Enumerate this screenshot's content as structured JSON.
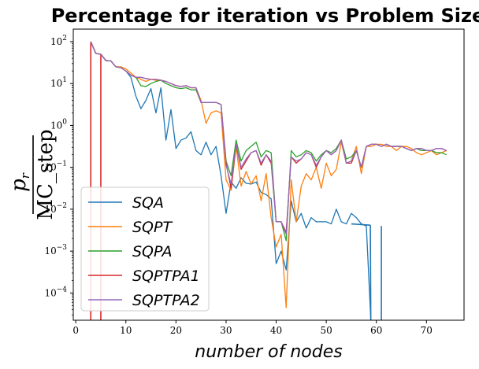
{
  "chart_data": {
    "type": "line",
    "title": "Percentage for iteration vs Problem Size",
    "xlabel": "number of nodes",
    "ylabel_numerator": "p",
    "ylabel_subscript": "r",
    "ylabel_denominator": "MC_step",
    "yscale": "log",
    "xlim": [
      -0.5,
      77.5
    ],
    "ylim_log10": [
      -4.65,
      2.3
    ],
    "xticks": [
      0,
      10,
      20,
      30,
      40,
      50,
      60,
      70
    ],
    "xtick_labels": [
      "0",
      "10",
      "20",
      "30",
      "40",
      "50",
      "60",
      "70"
    ],
    "ytick_exponents": [
      -4,
      -3,
      -2,
      -1,
      0,
      1,
      2
    ],
    "ytick_labels": [
      "10",
      "10",
      "10",
      "10",
      "10",
      "10",
      "10"
    ],
    "ytick_exp_labels": [
      "−4",
      "−3",
      "−2",
      "−1",
      "0",
      "1",
      "2"
    ],
    "grid": false,
    "legend_position": "lower-left",
    "x": [
      3,
      4,
      5,
      6,
      7,
      8,
      9,
      10,
      11,
      12,
      13,
      14,
      15,
      16,
      17,
      18,
      19,
      20,
      21,
      22,
      23,
      24,
      25,
      26,
      27,
      28,
      29,
      30,
      31,
      32,
      33,
      34,
      35,
      36,
      37,
      38,
      39,
      40,
      41,
      42,
      43,
      44,
      45,
      46,
      47,
      48,
      49,
      50,
      51,
      52,
      53,
      54,
      55,
      56,
      57,
      58,
      59,
      60,
      61,
      62,
      63,
      64,
      65,
      66,
      67,
      68,
      69,
      70,
      71,
      72,
      73,
      74
    ],
    "series": [
      {
        "name": "SQA",
        "color": "#1f77b4",
        "log10_values": [
          2.0,
          1.72,
          1.7,
          1.55,
          1.54,
          1.4,
          1.38,
          1.3,
          1.15,
          0.7,
          0.4,
          0.6,
          0.88,
          0.3,
          0.9,
          -0.35,
          0.38,
          -0.55,
          -0.35,
          -0.3,
          -0.15,
          -0.6,
          -0.7,
          -0.4,
          -0.7,
          -0.5,
          -1.2,
          -2.1,
          -1.35,
          -1.5,
          -1.25,
          -1.38,
          -1.4,
          -1.35,
          -1.6,
          -1.65,
          -1.75,
          -3.3,
          -3.0,
          -3.45,
          -1.8,
          -2.3,
          -2.1,
          -2.45,
          -2.2,
          -2.3,
          -2.3,
          -2.3,
          -2.35,
          -2.0,
          -2.3,
          -2.35,
          -2.1,
          -2.2,
          -2.35,
          -2.4,
          -4.9,
          -4.9,
          -4.9,
          -4.9,
          -4.9,
          -4.9,
          -4.9,
          -4.9,
          -4.9,
          -4.9,
          -4.9,
          -4.9,
          -4.9,
          -4.9,
          -4.9,
          -4.9
        ],
        "extra_segments": [
          {
            "x0": 55,
            "y0": -2.35,
            "x1": 58.8,
            "y1": -2.38
          },
          {
            "x0": 58.8,
            "y0": -2.38,
            "x1": 58.9,
            "y1": -4.9
          },
          {
            "x0": 61,
            "y0": -2.4,
            "x1": 61,
            "y1": -4.9
          }
        ]
      },
      {
        "name": "SQPT",
        "color": "#ff7f0e",
        "log10_values": [
          2.0,
          1.72,
          1.7,
          1.55,
          1.54,
          1.4,
          1.4,
          1.35,
          1.25,
          1.15,
          1.1,
          1.05,
          1.1,
          1.08,
          1.08,
          1.05,
          1.0,
          0.95,
          0.93,
          0.95,
          0.9,
          0.9,
          0.6,
          0.05,
          0.3,
          0.35,
          0.3,
          -1.3,
          -1.55,
          -0.5,
          -1.45,
          -1.1,
          -1.4,
          -1.2,
          -1.8,
          -1.15,
          -2.2,
          -2.9,
          -2.6,
          -4.35,
          -1.3,
          -2.3,
          -1.45,
          -1.15,
          -1.3,
          -1.0,
          -1.5,
          -0.9,
          -1.2,
          -1.05,
          -0.4,
          -0.9,
          -0.85,
          -0.5,
          -1.15,
          -0.5,
          -0.5,
          -0.45,
          -0.45,
          -0.5,
          -0.5,
          -0.6,
          -0.5,
          -0.5,
          -0.55,
          -0.65,
          -0.7,
          -0.65,
          -0.6,
          -0.7,
          -0.65,
          -0.6
        ]
      },
      {
        "name": "SQPA",
        "color": "#2ca02c",
        "log10_values": [
          2.0,
          1.72,
          1.7,
          1.55,
          1.54,
          1.4,
          1.38,
          1.3,
          1.2,
          1.15,
          0.95,
          0.93,
          1.0,
          1.05,
          1.08,
          1.0,
          0.95,
          0.9,
          0.88,
          0.9,
          0.85,
          0.85,
          0.55,
          0.55,
          0.55,
          0.55,
          0.5,
          -0.85,
          -1.2,
          -0.35,
          -0.85,
          -0.6,
          -0.5,
          -0.4,
          -0.75,
          -0.6,
          -0.65,
          -2.3,
          -2.3,
          -2.75,
          -0.6,
          -0.75,
          -0.7,
          -0.6,
          -0.65,
          -0.85,
          -0.7,
          -0.6,
          -0.65,
          -0.55,
          -0.35,
          -0.8,
          -0.75,
          -0.6,
          -1.0,
          -0.5,
          -0.45,
          -0.45,
          -0.5,
          -0.45,
          -0.5,
          -0.5,
          -0.5,
          -0.55,
          -0.6,
          -0.55,
          -0.6,
          -0.6,
          -0.6,
          -0.65,
          -0.65,
          -0.7
        ]
      },
      {
        "name": "SQPTPA1",
        "color": "#d62728",
        "log10_values": [
          2.0,
          1.72,
          1.7,
          1.55,
          1.54,
          1.4,
          1.38,
          1.3,
          1.2,
          1.15,
          1.15,
          1.12,
          1.1,
          1.1,
          1.08,
          1.05,
          1.0,
          0.95,
          0.93,
          0.95,
          0.9,
          0.9,
          0.55,
          0.55,
          0.55,
          0.55,
          0.5,
          -0.9,
          -1.5,
          -0.45,
          -1.05,
          -0.85,
          -0.65,
          -0.6,
          -0.95,
          -0.7,
          -0.9,
          -2.3,
          -2.3,
          -2.55,
          -0.75,
          -0.9,
          -0.8,
          -0.65,
          -0.7,
          -1.0,
          -0.75,
          -0.6,
          -0.7,
          -0.6,
          -0.35,
          -0.9,
          -0.9,
          -0.6,
          -1.0,
          -0.5,
          -0.45,
          -0.45,
          -0.5,
          -0.45,
          -0.5,
          -0.5,
          -0.5,
          -0.55,
          -0.6,
          -0.55,
          -0.55,
          -0.6,
          -0.6,
          -0.55,
          -0.55,
          -0.6
        ],
        "extra_segments": [
          {
            "x0": 3,
            "y0": 2.0,
            "x1": 3,
            "y1": -4.9
          },
          {
            "x0": 5,
            "y0": 1.7,
            "x1": 5,
            "y1": -4.9
          }
        ]
      },
      {
        "name": "SQPTPA2",
        "color": "#9467bd",
        "log10_values": [
          2.0,
          1.72,
          1.7,
          1.55,
          1.54,
          1.4,
          1.38,
          1.3,
          1.2,
          1.15,
          1.15,
          1.12,
          1.1,
          1.1,
          1.08,
          1.05,
          1.0,
          0.95,
          0.93,
          0.95,
          0.9,
          0.9,
          0.55,
          0.55,
          0.55,
          0.55,
          0.5,
          -0.95,
          -1.4,
          -0.45,
          -1.0,
          -0.8,
          -0.65,
          -0.6,
          -0.9,
          -0.7,
          -0.85,
          -2.3,
          -2.3,
          -2.6,
          -0.75,
          -0.85,
          -0.8,
          -0.65,
          -0.7,
          -0.95,
          -0.75,
          -0.6,
          -0.7,
          -0.6,
          -0.35,
          -0.9,
          -0.85,
          -0.6,
          -1.0,
          -0.5,
          -0.45,
          -0.45,
          -0.5,
          -0.45,
          -0.5,
          -0.5,
          -0.5,
          -0.55,
          -0.6,
          -0.55,
          -0.55,
          -0.6,
          -0.6,
          -0.55,
          -0.55,
          -0.6
        ]
      }
    ]
  }
}
